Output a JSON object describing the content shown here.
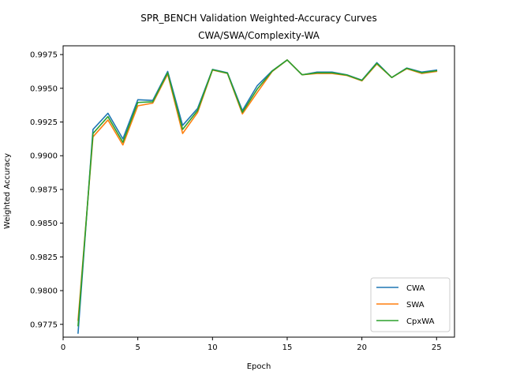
{
  "chart_data": {
    "type": "line",
    "title": "SPR_BENCH Validation Weighted-Accuracy Curves",
    "subtitle": "CWA/SWA/Complexity-WA",
    "xlabel": "Epoch",
    "ylabel": "Weighted Accuracy",
    "xlim": [
      0,
      26.2
    ],
    "ylim": [
      0.97655,
      0.99815
    ],
    "xticks": [
      0,
      5,
      10,
      15,
      20,
      25
    ],
    "yticks": [
      0.9775,
      0.98,
      0.9825,
      0.985,
      0.9875,
      0.99,
      0.9925,
      0.995,
      0.9975
    ],
    "ytick_labels": [
      "0.9775",
      "0.9800",
      "0.9825",
      "0.9850",
      "0.9875",
      "0.9900",
      "0.9925",
      "0.9950",
      "0.9975"
    ],
    "grid": false,
    "legend_position": "lower-right",
    "x": [
      1,
      2,
      3,
      4,
      5,
      6,
      7,
      8,
      9,
      10,
      11,
      12,
      13,
      14,
      15,
      16,
      17,
      18,
      19,
      20,
      21,
      22,
      23,
      24,
      25
    ],
    "series": [
      {
        "name": "CWA",
        "color": "#1f77b4",
        "values": [
          0.97685,
          0.99195,
          0.99315,
          0.99125,
          0.99415,
          0.9941,
          0.99625,
          0.99225,
          0.9935,
          0.9964,
          0.99615,
          0.99335,
          0.9952,
          0.9963,
          0.9971,
          0.996,
          0.9962,
          0.9962,
          0.996,
          0.9956,
          0.9969,
          0.9958,
          0.9965,
          0.9962,
          0.99635
        ]
      },
      {
        "name": "SWA",
        "color": "#ff7f0e",
        "values": [
          0.9778,
          0.9914,
          0.99265,
          0.9908,
          0.9937,
          0.9939,
          0.99605,
          0.99165,
          0.9932,
          0.99635,
          0.9961,
          0.9931,
          0.9947,
          0.99625,
          0.9971,
          0.996,
          0.9961,
          0.9961,
          0.99595,
          0.99555,
          0.9968,
          0.9958,
          0.99645,
          0.9961,
          0.99625
        ]
      },
      {
        "name": "CpxWA",
        "color": "#2ca02c",
        "values": [
          0.9774,
          0.99165,
          0.9929,
          0.991,
          0.99395,
          0.994,
          0.99615,
          0.99195,
          0.99335,
          0.99638,
          0.99612,
          0.99322,
          0.99495,
          0.99628,
          0.9971,
          0.996,
          0.99615,
          0.99615,
          0.99598,
          0.99558,
          0.99685,
          0.9958,
          0.99648,
          0.99615,
          0.9963
        ]
      }
    ]
  }
}
